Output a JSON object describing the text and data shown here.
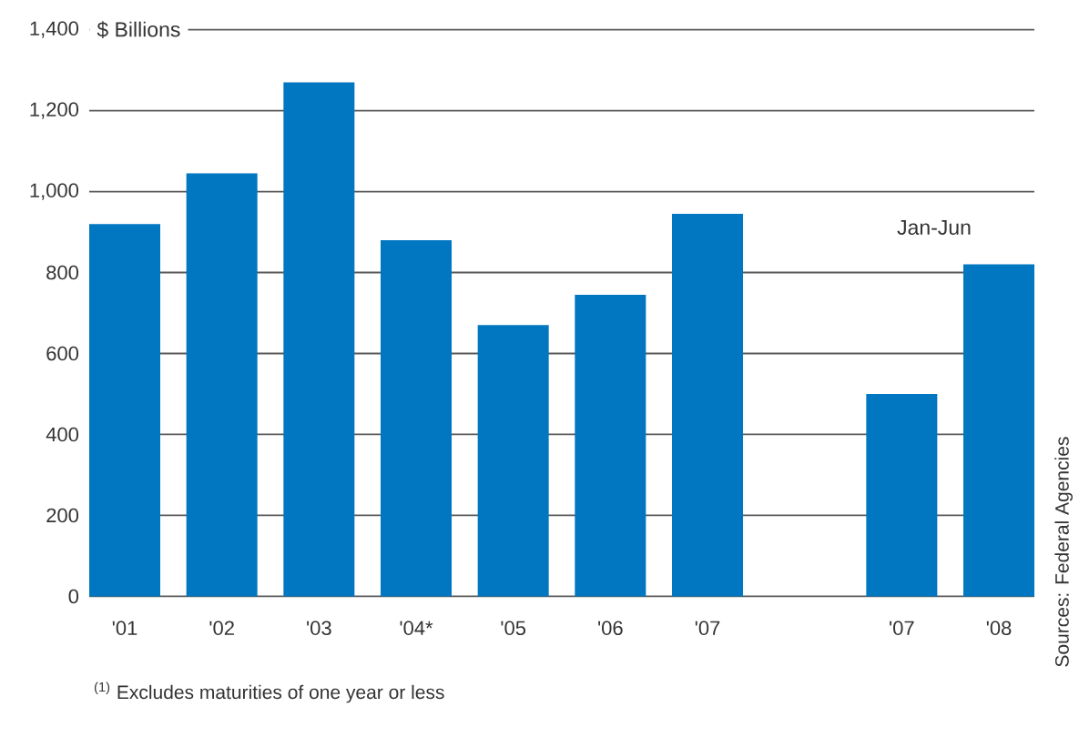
{
  "chart_data": {
    "type": "bar",
    "categories": [
      "'01",
      "'02",
      "'03",
      "'04*",
      "'05",
      "'06",
      "'07",
      null,
      "'07",
      "'08"
    ],
    "values": [
      920,
      1045,
      1270,
      880,
      670,
      745,
      945,
      null,
      500,
      820
    ],
    "color": "#0077c0",
    "ylabel": "$ Billions",
    "ylim": [
      0,
      1400
    ],
    "yticks": [
      0,
      200,
      400,
      600,
      800,
      {
        "value": 1000,
        "label": "1,000"
      },
      {
        "value": 1200,
        "label": "1,200"
      },
      {
        "value": 1400,
        "label": "1,400"
      }
    ],
    "grid": "y",
    "annotations": [
      "Jan-Jun",
      "$^{(1)}$ Excludes maturities of one year or less",
      "Sources: Federal Agencies"
    ]
  }
}
